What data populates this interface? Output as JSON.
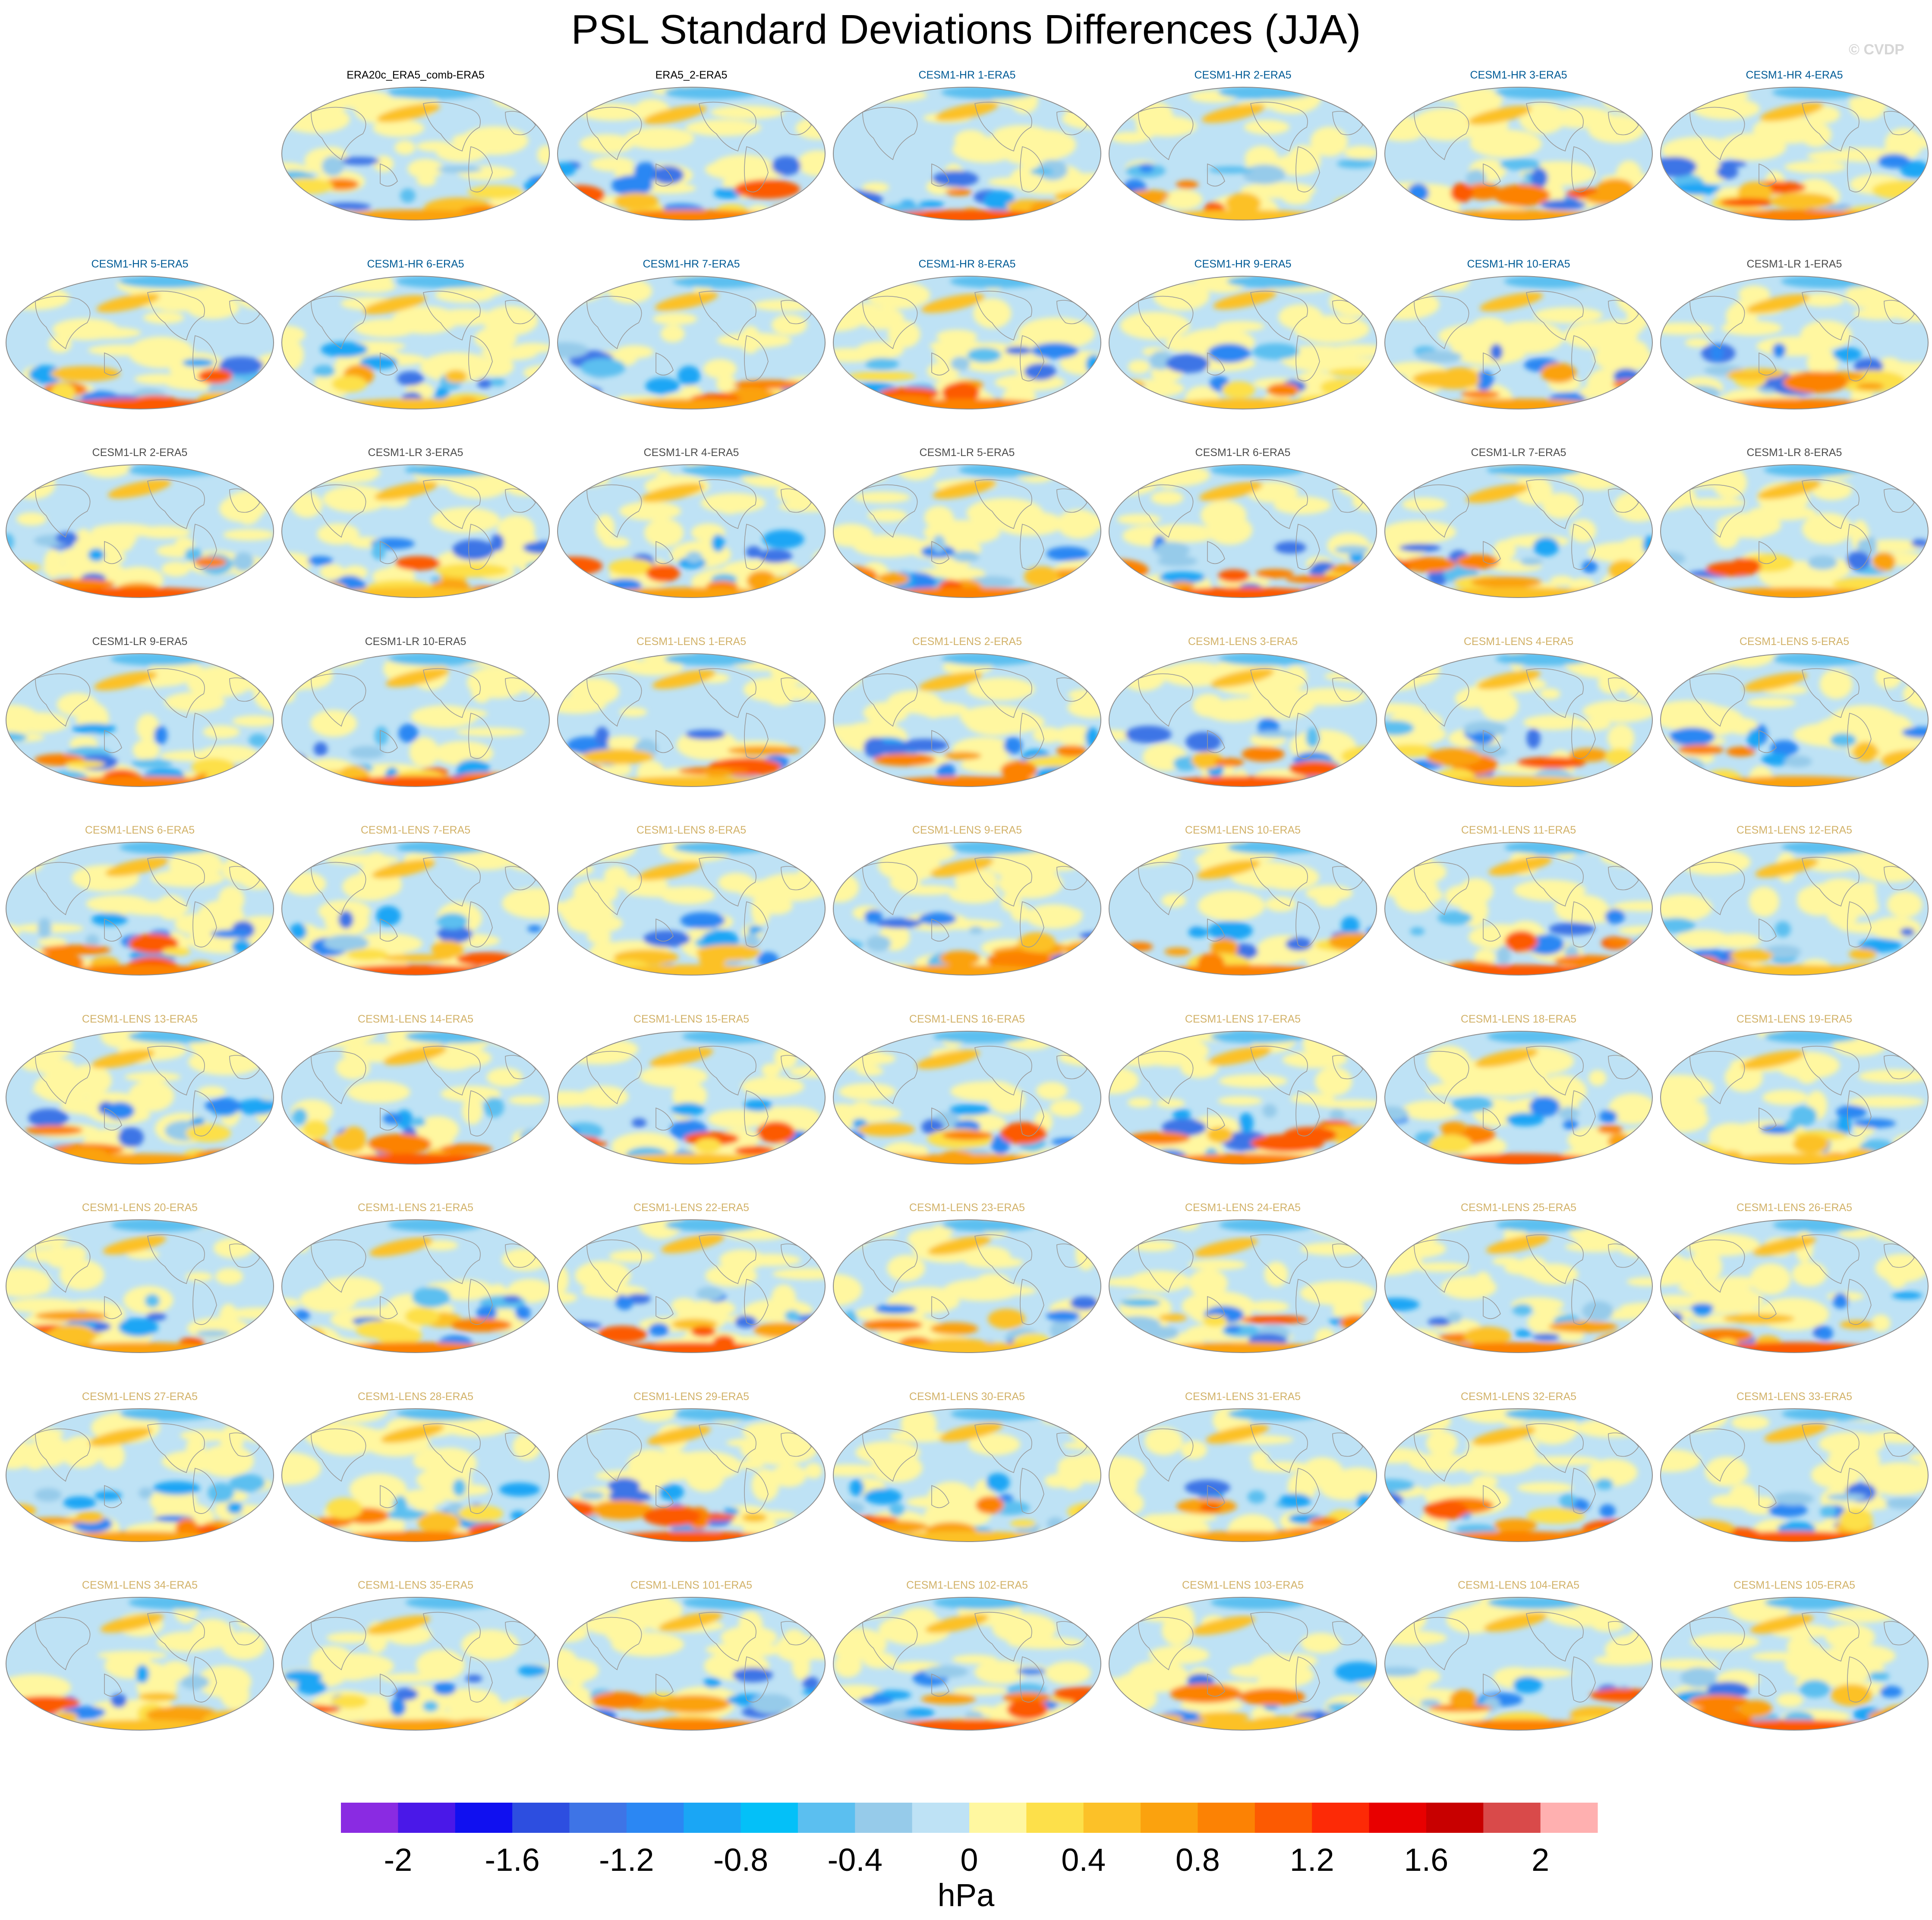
{
  "title": "PSL Standard Deviations Differences (JJA)",
  "credit": "© CVDP",
  "colors": {
    "obs_title": "#000000",
    "hr_title": "#005b96",
    "lr_title": "#4d4d4d",
    "lens_title": "#d2b269"
  },
  "panels": [
    {
      "label": "",
      "group": "blank"
    },
    {
      "label": "ERA20c_ERA5_comb-ERA5",
      "group": "obs"
    },
    {
      "label": "ERA5_2-ERA5",
      "group": "obs"
    },
    {
      "label": "CESM1-HR 1-ERA5",
      "group": "hr"
    },
    {
      "label": "CESM1-HR 2-ERA5",
      "group": "hr"
    },
    {
      "label": "CESM1-HR 3-ERA5",
      "group": "hr"
    },
    {
      "label": "CESM1-HR 4-ERA5",
      "group": "hr"
    },
    {
      "label": "CESM1-HR 5-ERA5",
      "group": "hr"
    },
    {
      "label": "CESM1-HR 6-ERA5",
      "group": "hr"
    },
    {
      "label": "CESM1-HR 7-ERA5",
      "group": "hr"
    },
    {
      "label": "CESM1-HR 8-ERA5",
      "group": "hr"
    },
    {
      "label": "CESM1-HR 9-ERA5",
      "group": "hr"
    },
    {
      "label": "CESM1-HR 10-ERA5",
      "group": "hr"
    },
    {
      "label": "CESM1-LR 1-ERA5",
      "group": "lr"
    },
    {
      "label": "CESM1-LR 2-ERA5",
      "group": "lr"
    },
    {
      "label": "CESM1-LR 3-ERA5",
      "group": "lr"
    },
    {
      "label": "CESM1-LR 4-ERA5",
      "group": "lr"
    },
    {
      "label": "CESM1-LR 5-ERA5",
      "group": "lr"
    },
    {
      "label": "CESM1-LR 6-ERA5",
      "group": "lr"
    },
    {
      "label": "CESM1-LR 7-ERA5",
      "group": "lr"
    },
    {
      "label": "CESM1-LR 8-ERA5",
      "group": "lr"
    },
    {
      "label": "CESM1-LR 9-ERA5",
      "group": "lr"
    },
    {
      "label": "CESM1-LR 10-ERA5",
      "group": "lr"
    },
    {
      "label": "CESM1-LENS 1-ERA5",
      "group": "lens"
    },
    {
      "label": "CESM1-LENS 2-ERA5",
      "group": "lens"
    },
    {
      "label": "CESM1-LENS 3-ERA5",
      "group": "lens"
    },
    {
      "label": "CESM1-LENS 4-ERA5",
      "group": "lens"
    },
    {
      "label": "CESM1-LENS 5-ERA5",
      "group": "lens"
    },
    {
      "label": "CESM1-LENS 6-ERA5",
      "group": "lens"
    },
    {
      "label": "CESM1-LENS 7-ERA5",
      "group": "lens"
    },
    {
      "label": "CESM1-LENS 8-ERA5",
      "group": "lens"
    },
    {
      "label": "CESM1-LENS 9-ERA5",
      "group": "lens"
    },
    {
      "label": "CESM1-LENS 10-ERA5",
      "group": "lens"
    },
    {
      "label": "CESM1-LENS 11-ERA5",
      "group": "lens"
    },
    {
      "label": "CESM1-LENS 12-ERA5",
      "group": "lens"
    },
    {
      "label": "CESM1-LENS 13-ERA5",
      "group": "lens"
    },
    {
      "label": "CESM1-LENS 14-ERA5",
      "group": "lens"
    },
    {
      "label": "CESM1-LENS 15-ERA5",
      "group": "lens"
    },
    {
      "label": "CESM1-LENS 16-ERA5",
      "group": "lens"
    },
    {
      "label": "CESM1-LENS 17-ERA5",
      "group": "lens"
    },
    {
      "label": "CESM1-LENS 18-ERA5",
      "group": "lens"
    },
    {
      "label": "CESM1-LENS 19-ERA5",
      "group": "lens"
    },
    {
      "label": "CESM1-LENS 20-ERA5",
      "group": "lens"
    },
    {
      "label": "CESM1-LENS 21-ERA5",
      "group": "lens"
    },
    {
      "label": "CESM1-LENS 22-ERA5",
      "group": "lens"
    },
    {
      "label": "CESM1-LENS 23-ERA5",
      "group": "lens"
    },
    {
      "label": "CESM1-LENS 24-ERA5",
      "group": "lens"
    },
    {
      "label": "CESM1-LENS 25-ERA5",
      "group": "lens"
    },
    {
      "label": "CESM1-LENS 26-ERA5",
      "group": "lens"
    },
    {
      "label": "CESM1-LENS 27-ERA5",
      "group": "lens"
    },
    {
      "label": "CESM1-LENS 28-ERA5",
      "group": "lens"
    },
    {
      "label": "CESM1-LENS 29-ERA5",
      "group": "lens"
    },
    {
      "label": "CESM1-LENS 30-ERA5",
      "group": "lens"
    },
    {
      "label": "CESM1-LENS 31-ERA5",
      "group": "lens"
    },
    {
      "label": "CESM1-LENS 32-ERA5",
      "group": "lens"
    },
    {
      "label": "CESM1-LENS 33-ERA5",
      "group": "lens"
    },
    {
      "label": "CESM1-LENS 34-ERA5",
      "group": "lens"
    },
    {
      "label": "CESM1-LENS 35-ERA5",
      "group": "lens"
    },
    {
      "label": "CESM1-LENS 101-ERA5",
      "group": "lens"
    },
    {
      "label": "CESM1-LENS 102-ERA5",
      "group": "lens"
    },
    {
      "label": "CESM1-LENS 103-ERA5",
      "group": "lens"
    },
    {
      "label": "CESM1-LENS 104-ERA5",
      "group": "lens"
    },
    {
      "label": "CESM1-LENS 105-ERA5",
      "group": "lens"
    }
  ],
  "colorbar": {
    "unit": "hPa",
    "colors": [
      "#8a2be2",
      "#4a18e8",
      "#1010f0",
      "#2d4ee0",
      "#3e74e6",
      "#2b87f3",
      "#1aa6f5",
      "#04c0f8",
      "#5bbff0",
      "#96cbea",
      "#bee2f5",
      "#fff7a0",
      "#fde04a",
      "#fcc128",
      "#fba20e",
      "#fc8204",
      "#fc5a02",
      "#fd2a06",
      "#e80000",
      "#c80000",
      "#d94a4a",
      "#ffb0b0"
    ],
    "tick_labels": [
      "-2",
      "-1.6",
      "-1.2",
      "-0.8",
      "-0.4",
      "0",
      "0.4",
      "0.8",
      "1.2",
      "1.6",
      "2"
    ]
  }
}
